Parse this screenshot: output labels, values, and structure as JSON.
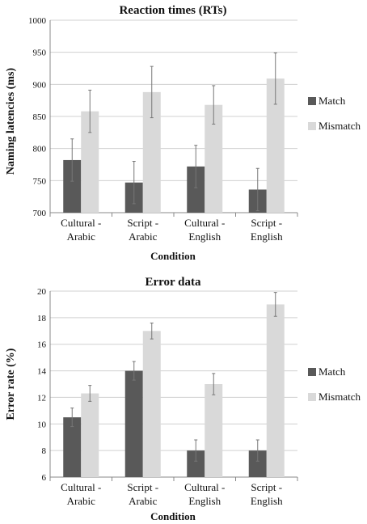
{
  "chart_data": [
    {
      "type": "bar",
      "title": "Reaction times (RTs)",
      "xlabel": "Condition",
      "ylabel": "Naming latencies (ms)",
      "ylim": [
        700,
        1000
      ],
      "yticks": [
        700,
        750,
        800,
        850,
        900,
        950,
        1000
      ],
      "grid": true,
      "legend_placement": "right",
      "categories": [
        [
          "Cultural -",
          "Arabic"
        ],
        [
          "Script -",
          "Arabic"
        ],
        [
          "Cultural -",
          "English"
        ],
        [
          "Script -",
          "English"
        ]
      ],
      "series": [
        {
          "name": "Match",
          "color": "#595959",
          "values": [
            782,
            747,
            772,
            736
          ],
          "errors": [
            33,
            33,
            33,
            33
          ]
        },
        {
          "name": "Mismatch",
          "color": "#d9d9d9",
          "values": [
            858,
            888,
            868,
            909
          ],
          "errors": [
            33,
            40,
            30,
            40
          ]
        }
      ]
    },
    {
      "type": "bar",
      "title": "Error data",
      "xlabel": "Condition",
      "ylabel": "Error rate (%)",
      "ylim": [
        6,
        20
      ],
      "yticks": [
        6,
        8,
        10,
        12,
        14,
        16,
        18,
        20
      ],
      "grid": true,
      "legend_placement": "right",
      "categories": [
        [
          "Cultural -",
          "Arabic"
        ],
        [
          "Script -",
          "Arabic"
        ],
        [
          "Cultural -",
          "English"
        ],
        [
          "Script -",
          "English"
        ]
      ],
      "series": [
        {
          "name": "Match",
          "color": "#595959",
          "values": [
            10.5,
            14,
            8,
            8
          ],
          "errors": [
            0.7,
            0.7,
            0.8,
            0.8
          ]
        },
        {
          "name": "Mismatch",
          "color": "#d9d9d9",
          "values": [
            12.3,
            17,
            13,
            19
          ],
          "errors": [
            0.6,
            0.6,
            0.8,
            0.9
          ]
        }
      ]
    }
  ]
}
